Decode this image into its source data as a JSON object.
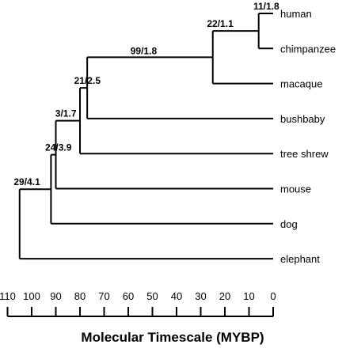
{
  "taxa": [
    "human",
    "chimpanzee",
    "macaque",
    "bushbaby",
    "tree shrew",
    "mouse",
    "dog",
    "elephant"
  ],
  "nodes": [
    {
      "label": "11/1.8",
      "age": 6,
      "children": [
        "human",
        "chimpanzee"
      ]
    },
    {
      "label": "22/1.1",
      "age": 25,
      "children": [
        "node:11/1.8",
        "macaque"
      ]
    },
    {
      "label": "99/1.8",
      "age": 77,
      "children": [
        "node:22/1.1",
        "bushbaby"
      ]
    },
    {
      "label": "21/2.5",
      "age": 80,
      "children": [
        "node:99/1.8",
        "tree shrew"
      ]
    },
    {
      "label": "3/1.7",
      "age": 90,
      "children": [
        "node:21/2.5",
        "mouse"
      ]
    },
    {
      "label": "24/3.9",
      "age": 92,
      "children": [
        "node:3/1.7",
        "dog"
      ]
    },
    {
      "label": "29/4.1",
      "age": 105,
      "children": [
        "node:24/3.9",
        "elephant"
      ]
    }
  ],
  "axis": {
    "title": "Molecular Timescale (MYBP)",
    "ticks": [
      110,
      100,
      90,
      80,
      70,
      60,
      50,
      40,
      30,
      20,
      10,
      0
    ]
  }
}
